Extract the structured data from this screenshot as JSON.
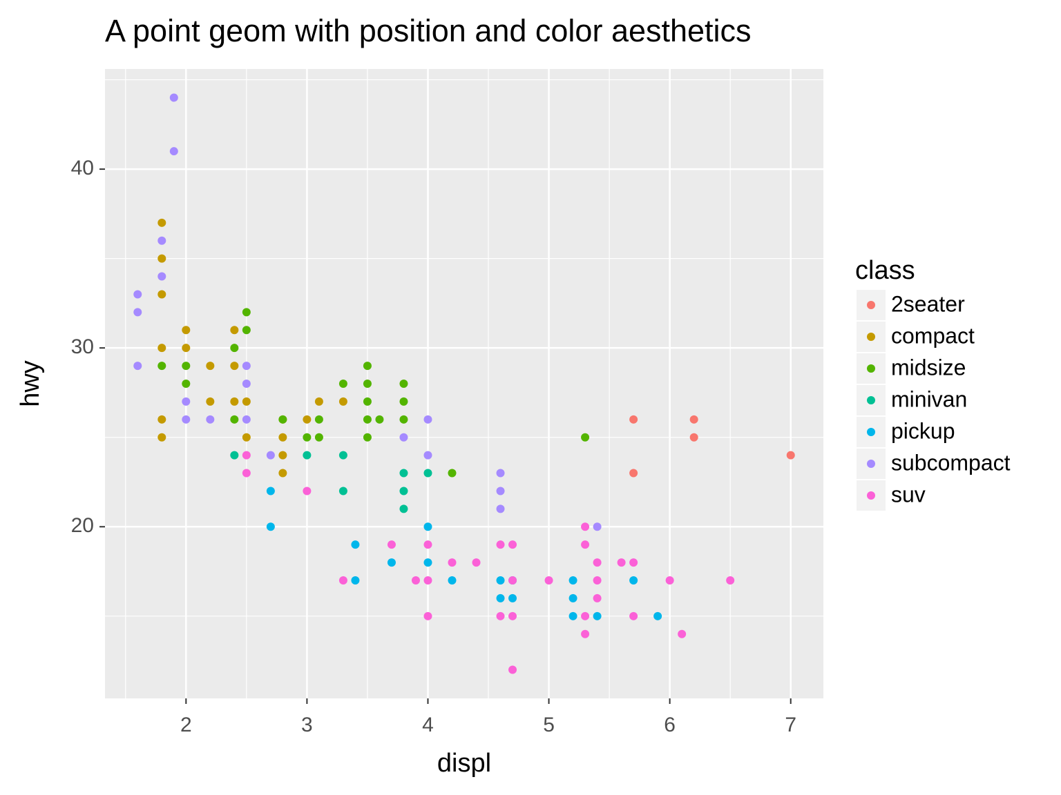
{
  "chart_data": {
    "type": "scatter",
    "title": "A point geom with position and color aesthetics",
    "x_label": "displ",
    "y_label": "hwy",
    "legend_title": "class",
    "legend_position": "right",
    "xlim": [
      1.33,
      7.27
    ],
    "ylim": [
      10.4,
      45.6
    ],
    "xticks": [
      2,
      3,
      4,
      5,
      6,
      7
    ],
    "yticks": [
      20,
      30,
      40
    ],
    "xminor": [
      1.5,
      2.5,
      3.5,
      4.5,
      5.5,
      6.5
    ],
    "yminor": [
      15,
      25,
      35,
      45
    ],
    "grid": true,
    "series": [
      {
        "name": "2seater",
        "color": "#f8766d",
        "x": [
          5.7,
          5.7,
          6.2,
          6.2,
          7.0
        ],
        "values": [
          26,
          23,
          26,
          25,
          24
        ]
      },
      {
        "name": "compact",
        "color": "#c49a00",
        "x": [
          1.8,
          1.8,
          1.8,
          1.8,
          1.8,
          1.8,
          2.0,
          2.0,
          2.2,
          2.2,
          2.4,
          2.4,
          2.4,
          2.5,
          2.5,
          2.8,
          2.8,
          2.8,
          2.8,
          3.0,
          3.1,
          3.3
        ],
        "values": [
          37,
          35,
          33,
          30,
          26,
          25,
          31,
          30,
          29,
          27,
          31,
          29,
          27,
          27,
          25,
          26,
          25,
          24,
          23,
          26,
          27,
          27
        ]
      },
      {
        "name": "midsize",
        "color": "#53b400",
        "x": [
          1.8,
          2.0,
          2.0,
          2.4,
          2.4,
          2.5,
          2.5,
          2.8,
          3.0,
          3.1,
          3.1,
          3.3,
          3.5,
          3.5,
          3.5,
          3.5,
          3.5,
          3.6,
          3.8,
          3.8,
          3.8,
          4.2,
          5.3
        ],
        "values": [
          29,
          29,
          28,
          30,
          26,
          32,
          31,
          26,
          25,
          26,
          25,
          28,
          29,
          28,
          27,
          26,
          25,
          26,
          28,
          27,
          26,
          23,
          25
        ]
      },
      {
        "name": "minivan",
        "color": "#00c094",
        "x": [
          2.4,
          3.0,
          3.3,
          3.3,
          3.8,
          3.8,
          3.8,
          4.0
        ],
        "values": [
          24,
          24,
          24,
          22,
          23,
          22,
          21,
          23
        ]
      },
      {
        "name": "pickup",
        "color": "#00b6eb",
        "x": [
          2.7,
          2.7,
          3.4,
          3.4,
          3.7,
          4.0,
          4.0,
          4.2,
          4.6,
          4.6,
          4.7,
          4.7,
          5.2,
          5.2,
          5.2,
          5.4,
          5.7,
          5.9
        ],
        "values": [
          22,
          20,
          19,
          17,
          18,
          20,
          18,
          17,
          17,
          16,
          17,
          16,
          17,
          16,
          15,
          15,
          17,
          15
        ]
      },
      {
        "name": "subcompact",
        "color": "#a58aff",
        "x": [
          1.6,
          1.6,
          1.6,
          1.8,
          1.8,
          1.9,
          1.9,
          2.0,
          2.0,
          2.2,
          2.5,
          2.5,
          2.5,
          2.7,
          3.8,
          4.0,
          4.0,
          4.6,
          4.6,
          4.6,
          5.4
        ],
        "values": [
          33,
          32,
          29,
          36,
          34,
          44,
          41,
          27,
          26,
          26,
          29,
          28,
          26,
          24,
          25,
          26,
          24,
          23,
          22,
          21,
          20
        ]
      },
      {
        "name": "suv",
        "color": "#fb61d7",
        "x": [
          2.5,
          2.5,
          3.0,
          3.3,
          3.7,
          3.9,
          4.0,
          4.0,
          4.0,
          4.2,
          4.4,
          4.6,
          4.6,
          4.7,
          4.7,
          4.7,
          4.7,
          5.0,
          5.3,
          5.3,
          5.3,
          5.3,
          5.4,
          5.4,
          5.4,
          5.6,
          5.7,
          5.7,
          6.0,
          6.1,
          6.5
        ],
        "values": [
          24,
          23,
          22,
          17,
          19,
          17,
          19,
          17,
          15,
          18,
          18,
          19,
          15,
          19,
          17,
          15,
          12,
          17,
          20,
          19,
          15,
          14,
          18,
          17,
          16,
          18,
          18,
          15,
          17,
          14,
          17
        ]
      }
    ]
  }
}
